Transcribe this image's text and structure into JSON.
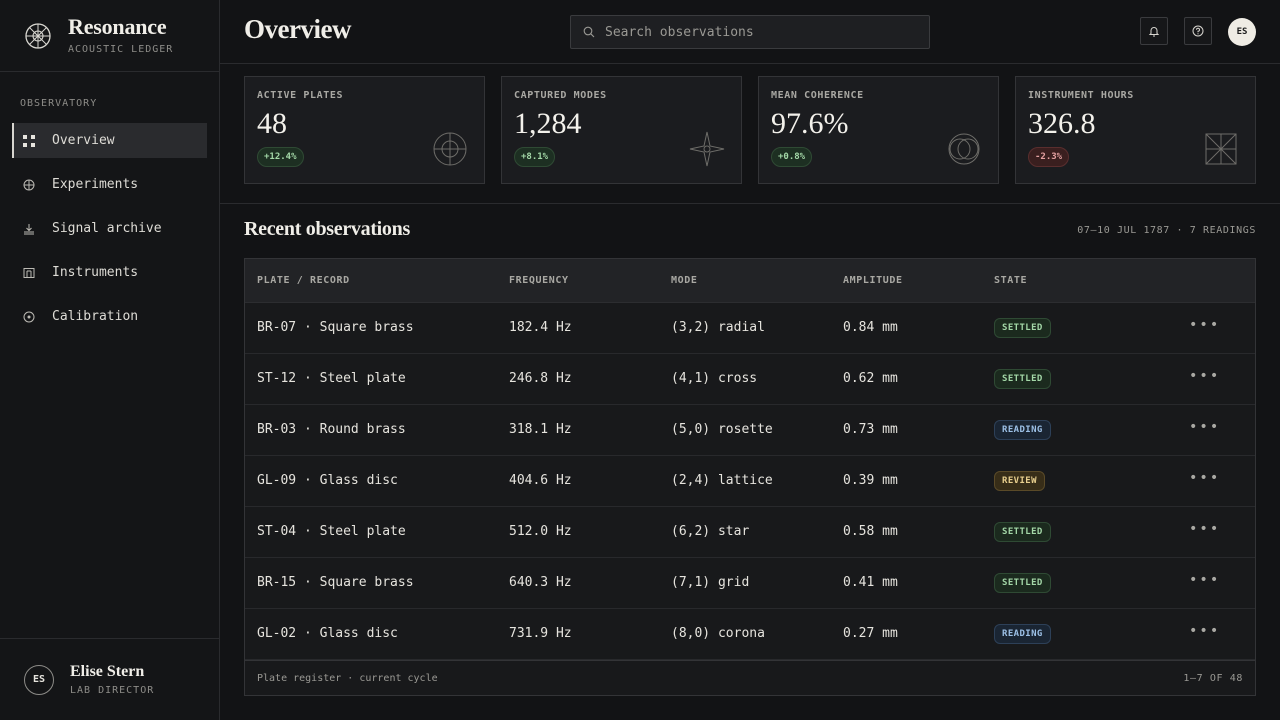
{
  "brand": {
    "title": "Resonance",
    "subtitle": "ACOUSTIC LEDGER"
  },
  "sidebar": {
    "section": "OBSERVATORY",
    "items": [
      {
        "label": "Overview",
        "icon": "grid-icon",
        "active": true
      },
      {
        "label": "Experiments",
        "icon": "crosshair-icon",
        "active": false
      },
      {
        "label": "Signal archive",
        "icon": "archive-icon",
        "active": false
      },
      {
        "label": "Instruments",
        "icon": "instrument-icon",
        "active": false
      },
      {
        "label": "Calibration",
        "icon": "target-icon",
        "active": false
      }
    ],
    "user": {
      "initials": "ES",
      "name": "Elise Stern",
      "role": "LAB DIRECTOR"
    }
  },
  "header": {
    "title": "Overview",
    "search_placeholder": "Search observations",
    "avatar_initials": "ES"
  },
  "stats": [
    {
      "label": "ACTIVE PLATES",
      "value": "48",
      "delta": "+12.4%",
      "trend": "up"
    },
    {
      "label": "CAPTURED MODES",
      "value": "1,284",
      "delta": "+8.1%",
      "trend": "up"
    },
    {
      "label": "MEAN COHERENCE",
      "value": "97.6%",
      "delta": "+0.8%",
      "trend": "up"
    },
    {
      "label": "INSTRUMENT HOURS",
      "value": "326.8",
      "delta": "-2.3%",
      "trend": "down"
    }
  ],
  "observations": {
    "title": "Recent observations",
    "meta": "07–10 JUL 1787 · 7 READINGS",
    "columns": [
      "PLATE / RECORD",
      "FREQUENCY",
      "MODE",
      "AMPLITUDE",
      "STATE"
    ],
    "rows": [
      {
        "record": "BR-07 · Square brass",
        "frequency": "182.4 Hz",
        "mode": "(3,2) radial",
        "amplitude": "0.84 mm",
        "state": "SETTLED"
      },
      {
        "record": "ST-12 · Steel plate",
        "frequency": "246.8 Hz",
        "mode": "(4,1) cross",
        "amplitude": "0.62 mm",
        "state": "SETTLED"
      },
      {
        "record": "BR-03 · Round brass",
        "frequency": "318.1 Hz",
        "mode": "(5,0) rosette",
        "amplitude": "0.73 mm",
        "state": "READING"
      },
      {
        "record": "GL-09 · Glass disc",
        "frequency": "404.6 Hz",
        "mode": "(2,4) lattice",
        "amplitude": "0.39 mm",
        "state": "REVIEW"
      },
      {
        "record": "ST-04 · Steel plate",
        "frequency": "512.0 Hz",
        "mode": "(6,2) star",
        "amplitude": "0.58 mm",
        "state": "SETTLED"
      },
      {
        "record": "BR-15 · Square brass",
        "frequency": "640.3 Hz",
        "mode": "(7,1) grid",
        "amplitude": "0.41 mm",
        "state": "SETTLED"
      },
      {
        "record": "GL-02 · Glass disc",
        "frequency": "731.9 Hz",
        "mode": "(8,0) corona",
        "amplitude": "0.27 mm",
        "state": "READING"
      }
    ],
    "footer_left": "Plate register · current cycle",
    "footer_right": "1–7 OF 48"
  }
}
